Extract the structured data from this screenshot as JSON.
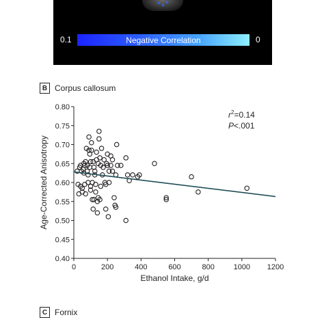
{
  "panel_a": {
    "colorbar_label": "Negative Correlation",
    "colorbar_min": "0.1",
    "colorbar_max": "0",
    "colors": {
      "start": "#1c24ff",
      "end": "#8ef0ff"
    }
  },
  "panel_b": {
    "letter": "B",
    "title": "Corpus callosum"
  },
  "panel_c": {
    "letter": "C",
    "title": "Fornix"
  },
  "chart_data": {
    "type": "scatter",
    "xlabel": "Ethanol Intake, g/d",
    "ylabel": "Age-Corrected Anisotropy",
    "xlim": [
      0,
      1200
    ],
    "ylim": [
      0.4,
      0.8
    ],
    "xticks": [
      "0",
      "200",
      "400",
      "600",
      "800",
      "1000",
      "1200"
    ],
    "yticks": [
      "0.40",
      "0.45",
      "0.50",
      "0.55",
      "0.60",
      "0.65",
      "0.70",
      "0.75",
      "0.80"
    ],
    "annotation_r2_base": "r",
    "annotation_r2_exp": "2",
    "annotation_r2_value": "=0.14",
    "annotation_p_letter": "P",
    "annotation_p_value": "<.001",
    "regression": {
      "x": [
        0,
        1200
      ],
      "y": [
        0.628,
        0.563
      ]
    },
    "points": [
      [
        20,
        0.63
      ],
      [
        25,
        0.595
      ],
      [
        30,
        0.57
      ],
      [
        35,
        0.64
      ],
      [
        40,
        0.645
      ],
      [
        40,
        0.59
      ],
      [
        45,
        0.63
      ],
      [
        50,
        0.585
      ],
      [
        50,
        0.575
      ],
      [
        55,
        0.635
      ],
      [
        60,
        0.625
      ],
      [
        60,
        0.65
      ],
      [
        65,
        0.645
      ],
      [
        65,
        0.595
      ],
      [
        70,
        0.57
      ],
      [
        70,
        0.655
      ],
      [
        75,
        0.69
      ],
      [
        80,
        0.645
      ],
      [
        80,
        0.63
      ],
      [
        85,
        0.62
      ],
      [
        85,
        0.6
      ],
      [
        90,
        0.685
      ],
      [
        90,
        0.72
      ],
      [
        95,
        0.675
      ],
      [
        95,
        0.64
      ],
      [
        100,
        0.655
      ],
      [
        100,
        0.59
      ],
      [
        100,
        0.58
      ],
      [
        105,
        0.685
      ],
      [
        105,
        0.705
      ],
      [
        110,
        0.6
      ],
      [
        110,
        0.555
      ],
      [
        115,
        0.655
      ],
      [
        115,
        0.53
      ],
      [
        120,
        0.64
      ],
      [
        120,
        0.555
      ],
      [
        125,
        0.63
      ],
      [
        125,
        0.62
      ],
      [
        130,
        0.575
      ],
      [
        130,
        0.595
      ],
      [
        135,
        0.66
      ],
      [
        135,
        0.68
      ],
      [
        140,
        0.55
      ],
      [
        140,
        0.52
      ],
      [
        145,
        0.65
      ],
      [
        145,
        0.56
      ],
      [
        150,
        0.735
      ],
      [
        150,
        0.715
      ],
      [
        155,
        0.665
      ],
      [
        155,
        0.555
      ],
      [
        160,
        0.59
      ],
      [
        160,
        0.645
      ],
      [
        165,
        0.69
      ],
      [
        170,
        0.62
      ],
      [
        175,
        0.64
      ],
      [
        180,
        0.66
      ],
      [
        185,
        0.6
      ],
      [
        190,
        0.53
      ],
      [
        190,
        0.595
      ],
      [
        195,
        0.65
      ],
      [
        200,
        0.645
      ],
      [
        200,
        0.675
      ],
      [
        205,
        0.51
      ],
      [
        210,
        0.63
      ],
      [
        210,
        0.6
      ],
      [
        220,
        0.645
      ],
      [
        220,
        0.67
      ],
      [
        230,
        0.66
      ],
      [
        230,
        0.63
      ],
      [
        240,
        0.56
      ],
      [
        245,
        0.54
      ],
      [
        250,
        0.535
      ],
      [
        250,
        0.62
      ],
      [
        255,
        0.7
      ],
      [
        260,
        0.645
      ],
      [
        280,
        0.645
      ],
      [
        310,
        0.665
      ],
      [
        310,
        0.5
      ],
      [
        320,
        0.62
      ],
      [
        330,
        0.605
      ],
      [
        350,
        0.62
      ],
      [
        380,
        0.615
      ],
      [
        390,
        0.62
      ],
      [
        480,
        0.65
      ],
      [
        550,
        0.56
      ],
      [
        550,
        0.555
      ],
      [
        700,
        0.615
      ],
      [
        740,
        0.575
      ],
      [
        1030,
        0.585
      ]
    ]
  }
}
